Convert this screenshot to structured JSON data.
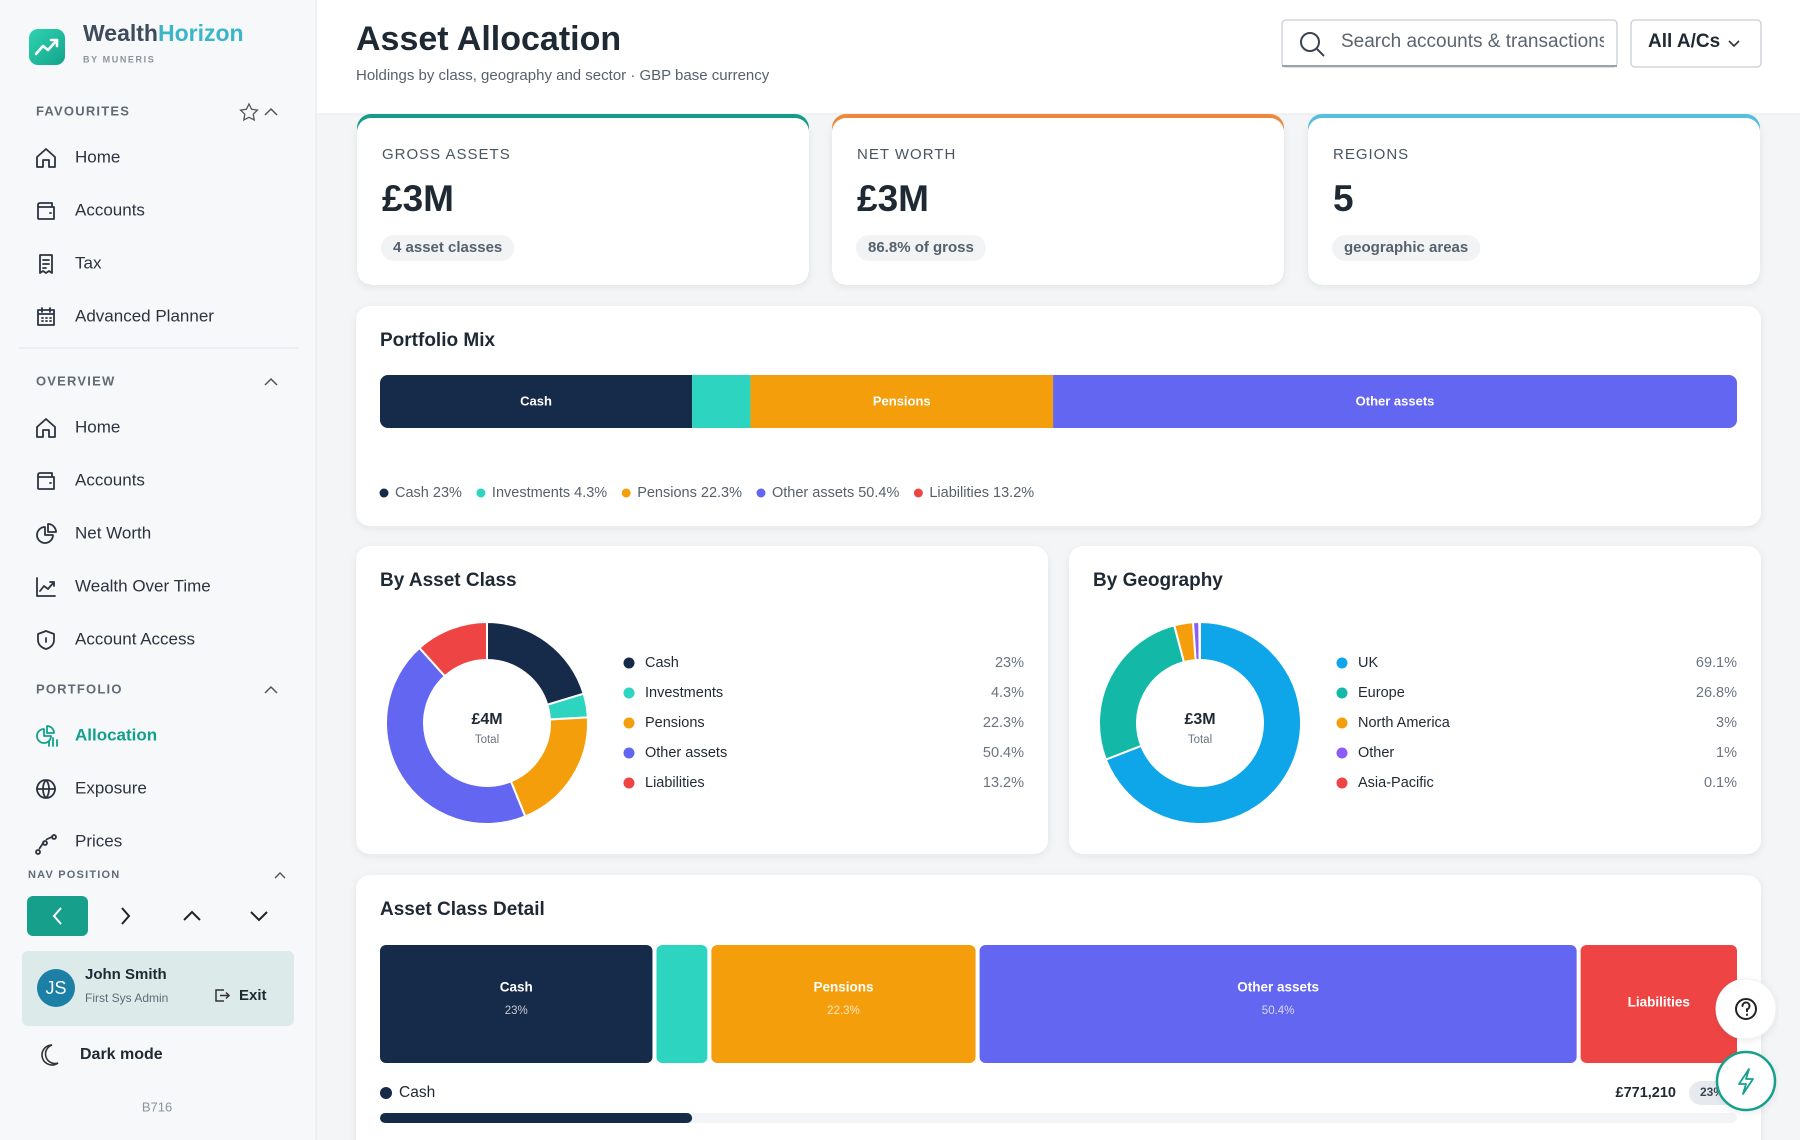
{
  "brand": {
    "name": "Wealth",
    "name_accent": "Horizon",
    "tagline": "BY MUNERIS"
  },
  "sidebar": {
    "sections": [
      {
        "title": "FAVOURITES",
        "items": [
          "Home",
          "Accounts",
          "Tax",
          "Advanced Planner"
        ]
      },
      {
        "title": "OVERVIEW",
        "items": [
          "Home",
          "Accounts",
          "Net Worth",
          "Wealth Over Time",
          "Account Access"
        ]
      },
      {
        "title": "PORTFOLIO",
        "items": [
          "Allocation",
          "Exposure",
          "Prices"
        ],
        "active": 0
      }
    ],
    "nav_position": "NAV POSITION",
    "user": {
      "initials": "JS",
      "name": "John Smith",
      "role": "First Sys Admin",
      "exit": "Exit"
    },
    "dark_mode": "Dark mode",
    "build": "B716"
  },
  "header": {
    "title": "Asset Allocation",
    "subtitle": "Holdings by class, geography and sector · GBP base currency",
    "search_placeholder": "Search accounts & transactions",
    "account_filter": "All A/Cs"
  },
  "stats": [
    {
      "label": "GROSS ASSETS",
      "value": "£3M",
      "note": "4 asset classes",
      "color": "#169d8a"
    },
    {
      "label": "NET WORTH",
      "value": "£3M",
      "note": "86.8% of gross",
      "color": "#f08a3c"
    },
    {
      "label": "REGIONS",
      "value": 5,
      "note": "geographic areas",
      "color": "#58c0e0"
    }
  ],
  "portfolio_mix": {
    "title": "Portfolio Mix",
    "segments": [
      {
        "label": "Cash",
        "value": 23,
        "color": "#162a4a"
      },
      {
        "label": null,
        "value": 4.3,
        "color": "#2dd4bf"
      },
      {
        "label": "Pensions",
        "value": 22.3,
        "color": "#f59e0b"
      },
      {
        "label": "Other assets",
        "value": 50.4,
        "color": "#6366f1"
      }
    ],
    "legend": [
      {
        "name": "Cash",
        "value_label": "23%",
        "color": "#162a4a"
      },
      {
        "name": "Investments",
        "value_label": "4.3%",
        "color": "#2dd4bf"
      },
      {
        "name": "Pensions",
        "value_label": "22.3%",
        "color": "#f59e0b"
      },
      {
        "name": "Other assets",
        "value_label": "50.4%",
        "color": "#6366f1"
      },
      {
        "name": "Liabilities",
        "value_label": "13.2%",
        "color": "#ef4444"
      }
    ]
  },
  "asset_class": {
    "type": "pie",
    "title": "By Asset Class",
    "center_value": "£4M",
    "center_label": "Total",
    "categories": [
      "Cash",
      "Investments",
      "Pensions",
      "Other assets",
      "Liabilities"
    ],
    "values": [
      23,
      4.3,
      22.3,
      50.4,
      13.2
    ],
    "value_labels": [
      "23%",
      "4.3%",
      "22.3%",
      "50.4%",
      "13.2%"
    ],
    "colors": [
      "#162a4a",
      "#2dd4bf",
      "#f59e0b",
      "#6366f1",
      "#ef4444"
    ]
  },
  "geography": {
    "type": "pie",
    "title": "By Geography",
    "center_value": "£3M",
    "center_label": "Total",
    "categories": [
      "UK",
      "Europe",
      "North America",
      "Other",
      "Asia-Pacific"
    ],
    "values": [
      69.1,
      26.8,
      3,
      1,
      0.1
    ],
    "value_labels": [
      "69.1%",
      "26.8%",
      "3%",
      "1%",
      "0.1%"
    ],
    "colors": [
      "#0ea5e9",
      "#14b8a6",
      "#f59e0b",
      "#8b5cf6",
      "#ef4444"
    ]
  },
  "asset_class_detail": {
    "title": "Asset Class Detail",
    "tiles": [
      {
        "name": "Cash",
        "value": 23,
        "value_label": "23%",
        "color": "#162a4a"
      },
      {
        "name": null,
        "value": 4.3,
        "value_label": null,
        "color": "#2dd4bf"
      },
      {
        "name": "Pensions",
        "value": 22.3,
        "value_label": "22.3%",
        "color": "#f59e0b"
      },
      {
        "name": "Other assets",
        "value": 50.4,
        "value_label": "50.4%",
        "color": "#6366f1"
      },
      {
        "name": "Liabilities",
        "value": 13.2,
        "value_label": null,
        "color": "#ef4444"
      }
    ],
    "rows": [
      {
        "name": "Cash",
        "amount": "£771,210",
        "share": 23,
        "share_label": "23%",
        "color": "#162a4a"
      }
    ]
  }
}
